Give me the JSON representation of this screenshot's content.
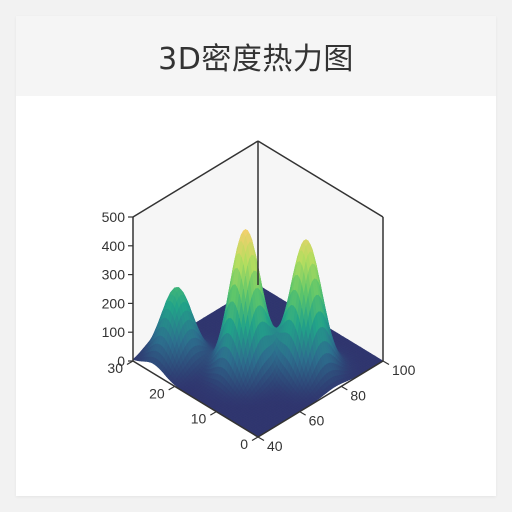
{
  "title": "3D密度热力图",
  "chart_data": {
    "type": "surface",
    "title": "3D密度热力图",
    "x_axis": {
      "range": [
        40,
        100
      ],
      "ticks": [
        40,
        60,
        80,
        100
      ]
    },
    "y_axis": {
      "range": [
        0,
        30
      ],
      "ticks": [
        0,
        10,
        20,
        30
      ]
    },
    "z_axis": {
      "range": [
        0,
        500
      ],
      "ticks": [
        0,
        100,
        200,
        300,
        400,
        500
      ]
    },
    "peaks": [
      {
        "x": 62,
        "y": 14,
        "height": 500
      },
      {
        "x": 77,
        "y": 7,
        "height": 460
      },
      {
        "x": 51,
        "y": 25,
        "height": 250
      }
    ],
    "colorscale": [
      "#30366f",
      "#2d6f8e",
      "#22a389",
      "#5fc66a",
      "#b4dd5f",
      "#f5d06e"
    ],
    "pane_color": "#f6f6f6",
    "axis_line_color": "#333333"
  }
}
